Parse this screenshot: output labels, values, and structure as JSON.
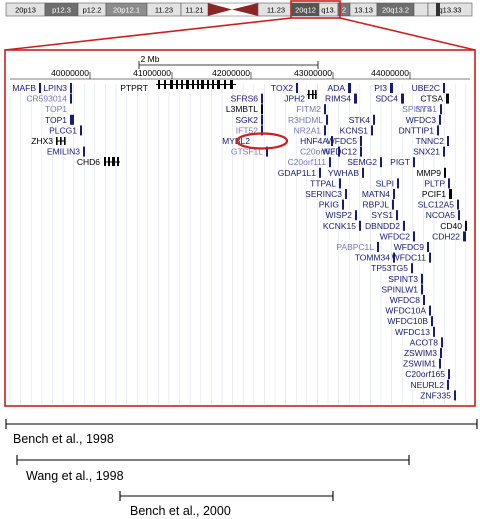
{
  "ideogram": {
    "bands": [
      {
        "label": "20p13",
        "shade": "#e2e2e2",
        "text": "#000000"
      },
      {
        "label": "p12.3",
        "shade": "#6e6e6e",
        "text": "#ffffff"
      },
      {
        "label": "p12.2",
        "shade": "#e2e2e2",
        "text": "#000000"
      },
      {
        "label": "20p12.1",
        "shade": "#8c8c8c",
        "text": "#ffffff"
      },
      {
        "label": "11.23",
        "shade": "#e2e2e2",
        "text": "#000000"
      },
      {
        "label": "11.21",
        "shade": "#e2e2e2",
        "text": "#000000"
      },
      {
        "label": "",
        "shade": "#8b2626",
        "text": "#ffffff"
      },
      {
        "label": "11.23",
        "shade": "#e2e2e2",
        "text": "#000000"
      },
      {
        "label": "20q12",
        "shade": "#555555",
        "text": "#ffffff"
      },
      {
        "label": "q13.",
        "shade": "#e2e2e2",
        "text": "#000000"
      },
      {
        "label": "2",
        "shade": "#777777",
        "text": "#ffffff"
      },
      {
        "label": "13.13",
        "shade": "#e2e2e2",
        "text": "#000000"
      },
      {
        "label": "20q13.2",
        "shade": "#6e6e6e",
        "text": "#ffffff"
      },
      {
        "label": "",
        "shade": "#e2e2e2",
        "text": "#000000"
      },
      {
        "label": "q13.33",
        "shade": "#e2e2e2",
        "text": "#000000"
      }
    ]
  },
  "browser": {
    "scale_label": "2 Mb",
    "positions": [
      "40000000",
      "41000000",
      "42000000",
      "43000000",
      "44000000"
    ],
    "highlight_gene": "MYBL2",
    "genes": [
      {
        "name": "MAFB",
        "color": "#1a1a6e"
      },
      {
        "name": "LPIN3",
        "color": "#1a1a6e"
      },
      {
        "name": "CR593014",
        "color": "#7777bb"
      },
      {
        "name": "TOP1",
        "color": "#7777bb"
      },
      {
        "name": "TOP1",
        "color": "#1a1a6e"
      },
      {
        "name": "PLCG1",
        "color": "#1a1a6e"
      },
      {
        "name": "ZHX3",
        "color": "#000000"
      },
      {
        "name": "EMILIN3",
        "color": "#1a1a6e"
      },
      {
        "name": "CHD6",
        "color": "#000000"
      },
      {
        "name": "PTPRT",
        "color": "#000000"
      },
      {
        "name": "SFRS6",
        "color": "#1a1a6e"
      },
      {
        "name": "L3MBTL",
        "color": "#000000"
      },
      {
        "name": "SGK2",
        "color": "#1a1a6e"
      },
      {
        "name": "IFT52",
        "color": "#7777bb"
      },
      {
        "name": "MYBL2",
        "color": "#1a1a6e"
      },
      {
        "name": "GTSF1L",
        "color": "#7777bb"
      },
      {
        "name": "TOX2",
        "color": "#1a1a6e"
      },
      {
        "name": "JPH2",
        "color": "#1a1a6e"
      },
      {
        "name": "FITM2",
        "color": "#7777bb"
      },
      {
        "name": "R3HDML",
        "color": "#7777bb"
      },
      {
        "name": "NR2A1",
        "color": "#7777bb"
      },
      {
        "name": "HNF4A",
        "color": "#1a1a6e"
      },
      {
        "name": "C20orf62",
        "color": "#7777bb"
      },
      {
        "name": "C20orf111",
        "color": "#7777bb"
      },
      {
        "name": "GDAP1L1",
        "color": "#1a1a6e"
      },
      {
        "name": "TTPAL",
        "color": "#1a1a6e"
      },
      {
        "name": "SERINC3",
        "color": "#1a1a6e"
      },
      {
        "name": "PKIG",
        "color": "#1a1a6e"
      },
      {
        "name": "WISP2",
        "color": "#1a1a6e"
      },
      {
        "name": "KCNK15",
        "color": "#1a1a6e"
      },
      {
        "name": "ADA",
        "color": "#1a1a6e"
      },
      {
        "name": "RIMS4",
        "color": "#1a1a6e"
      },
      {
        "name": "STK4",
        "color": "#1a1a6e"
      },
      {
        "name": "KCNS1",
        "color": "#1a1a6e"
      },
      {
        "name": "WFDC5",
        "color": "#1a1a6e"
      },
      {
        "name": "WFDC12",
        "color": "#1a1a6e"
      },
      {
        "name": "SEMG2",
        "color": "#1a1a6e"
      },
      {
        "name": "YWHAB",
        "color": "#1a1a6e"
      },
      {
        "name": "SLPI",
        "color": "#1a1a6e"
      },
      {
        "name": "MATN4",
        "color": "#1a1a6e"
      },
      {
        "name": "RBPJL",
        "color": "#1a1a6e"
      },
      {
        "name": "SYS1",
        "color": "#1a1a6e"
      },
      {
        "name": "DBNDD2",
        "color": "#1a1a6e"
      },
      {
        "name": "WFDC2",
        "color": "#1a1a6e"
      },
      {
        "name": "PABPC1L",
        "color": "#7777bb"
      },
      {
        "name": "TOMM34",
        "color": "#1a1a6e"
      },
      {
        "name": "PI3",
        "color": "#1a1a6e"
      },
      {
        "name": "SDC4",
        "color": "#1a1a6e"
      },
      {
        "name": "SYS1",
        "color": "#7777bb"
      },
      {
        "name": "WFDC3",
        "color": "#1a1a6e"
      },
      {
        "name": "DNTTIP1",
        "color": "#1a1a6e"
      },
      {
        "name": "TNNC2",
        "color": "#1a1a6e"
      },
      {
        "name": "SNX21",
        "color": "#1a1a6e"
      },
      {
        "name": "PIGT",
        "color": "#1a1a6e"
      },
      {
        "name": "MMP9",
        "color": "#000000"
      },
      {
        "name": "PLTP",
        "color": "#1a1a6e"
      },
      {
        "name": "PCIF1",
        "color": "#000000"
      },
      {
        "name": "SLC12A5",
        "color": "#1a1a6e"
      },
      {
        "name": "NCOA5",
        "color": "#1a1a6e"
      },
      {
        "name": "CD40",
        "color": "#000000"
      },
      {
        "name": "CDH22",
        "color": "#1a1a6e"
      },
      {
        "name": "WFDC9",
        "color": "#1a1a6e"
      },
      {
        "name": "WFDC11",
        "color": "#1a1a6e"
      },
      {
        "name": "TP53TG5",
        "color": "#1a1a6e"
      },
      {
        "name": "SPINT3",
        "color": "#1a1a6e"
      },
      {
        "name": "SPINLW1",
        "color": "#1a1a6e"
      },
      {
        "name": "WFDC8",
        "color": "#1a1a6e"
      },
      {
        "name": "WFDC10A",
        "color": "#1a1a6e"
      },
      {
        "name": "WFDC10B",
        "color": "#1a1a6e"
      },
      {
        "name": "WFDC13",
        "color": "#1a1a6e"
      },
      {
        "name": "ACOT8",
        "color": "#1a1a6e"
      },
      {
        "name": "ZSWIM3",
        "color": "#1a1a6e"
      },
      {
        "name": "ZSWIM1",
        "color": "#1a1a6e"
      },
      {
        "name": "C20orf165",
        "color": "#1a1a6e"
      },
      {
        "name": "NEURL2",
        "color": "#1a1a6e"
      },
      {
        "name": "ZNF335",
        "color": "#1a1a6e"
      },
      {
        "name": "UBE2C",
        "color": "#1a1a6e"
      },
      {
        "name": "CTSA",
        "color": "#000000"
      },
      {
        "name": "SPINT4",
        "color": "#7777bb"
      }
    ]
  },
  "references": [
    {
      "label": "Bench et al., 1998"
    },
    {
      "label": "Wang et al., 1998"
    },
    {
      "label": "Bench et al., 2000"
    }
  ],
  "colors": {
    "highlight_red": "#cc1f1f",
    "gene_dark": "#1a1a6e",
    "gene_light": "#7777bb",
    "gridline": "#dde3ee"
  }
}
